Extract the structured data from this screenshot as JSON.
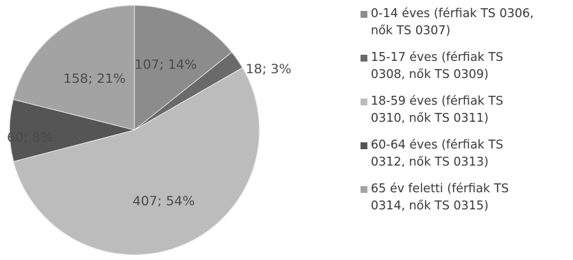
{
  "chart_data": {
    "type": "pie",
    "start_angle_deg": 0,
    "direction": "clockwise",
    "slices": [
      {
        "name": "0-14 éves (férfiak TS 0306, nők TS 0307)",
        "value": 107,
        "label": "107; 14%",
        "color": "#8c8c8c"
      },
      {
        "name": "15-17 éves (férfiak TS 0308, nők TS 0309)",
        "value": 18,
        "label": "18; 3%",
        "color": "#6a6a6a"
      },
      {
        "name": "18-59 éves (férfiak TS 0310, nők TS 0311)",
        "value": 407,
        "label": "407; 54%",
        "color": "#bcbcbc"
      },
      {
        "name": "60-64 éves (férfiak TS 0312, nők TS 0313)",
        "value": 60,
        "label": "60; 8%",
        "color": "#555555"
      },
      {
        "name": "65 év feletti (férfiak TS 0314, nők TS 0315)",
        "value": 158,
        "label": "158; 21%",
        "color": "#a3a3a3"
      }
    ],
    "legend_position": "right"
  },
  "legend_items": [
    {
      "line1": "0-14 éves (férfiak TS 0306,",
      "line2": "nők TS 0307)"
    },
    {
      "line1": "15-17 éves (férfiak TS",
      "line2": "0308, nők TS 0309)"
    },
    {
      "line1": "18-59 éves (férfiak TS",
      "line2": "0310, nők TS 0311)"
    },
    {
      "line1": "60-64 éves (férfiak TS",
      "line2": "0312, nők TS 0313)"
    },
    {
      "line1": "65 év feletti (férfiak TS",
      "line2": "0314, nők TS 0315)"
    }
  ]
}
